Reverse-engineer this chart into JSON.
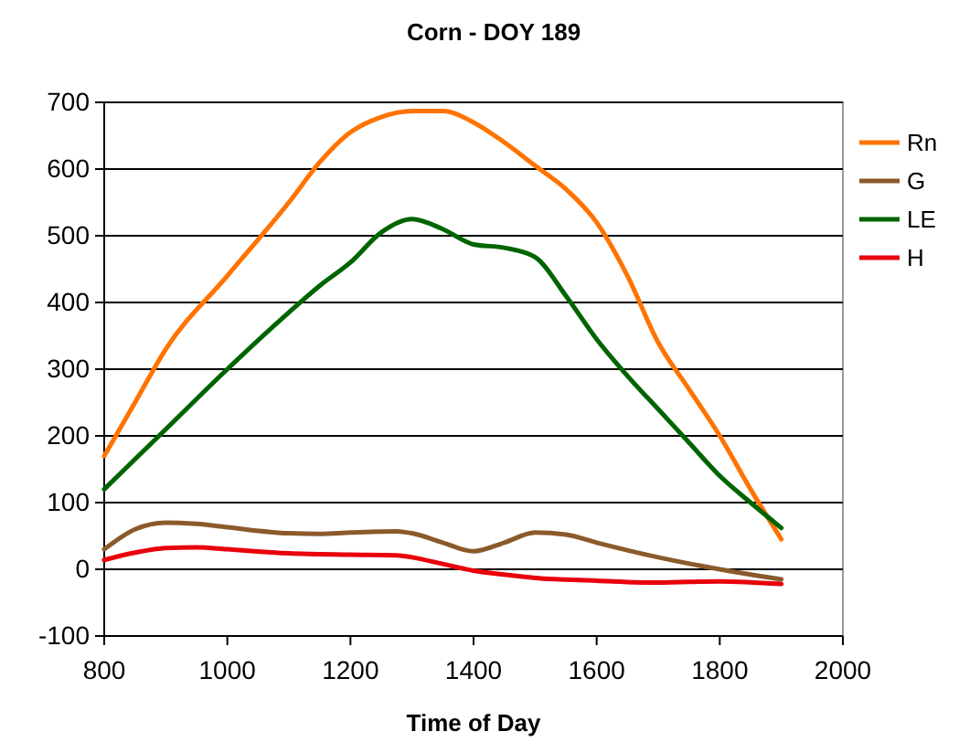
{
  "chart_data": {
    "type": "line",
    "title": "Corn - DOY 189",
    "xlabel": "Time of Day",
    "xlim": [
      800,
      2000
    ],
    "xticks": [
      800,
      1000,
      1200,
      1400,
      1600,
      1800,
      2000
    ],
    "ylim": [
      -100,
      700
    ],
    "yticks": [
      -100,
      0,
      100,
      200,
      300,
      400,
      500,
      600,
      700
    ],
    "grid": "y",
    "legend": "right",
    "marker": "none",
    "line_style": "solid",
    "series": [
      {
        "name": "Rn",
        "color": "#ff7300",
        "x": [
          800,
          850,
          900,
          1000,
          1100,
          1150,
          1200,
          1250,
          1300,
          1350,
          1400,
          1450,
          1500,
          1550,
          1600,
          1650,
          1700,
          1750,
          1800,
          1850,
          1900
        ],
        "values": [
          170,
          250,
          330,
          440,
          550,
          610,
          655,
          678,
          687,
          687,
          670,
          640,
          605,
          570,
          520,
          440,
          340,
          270,
          200,
          120,
          45
        ]
      },
      {
        "name": "G",
        "color": "#8b5a2b",
        "x": [
          800,
          850,
          900,
          950,
          1000,
          1100,
          1150,
          1200,
          1275,
          1300,
          1350,
          1400,
          1450,
          1500,
          1550,
          1600,
          1700,
          1800,
          1900
        ],
        "values": [
          30,
          60,
          70,
          68,
          63,
          54,
          53,
          55,
          57,
          54,
          40,
          27,
          40,
          55,
          52,
          40,
          18,
          0,
          -15
        ]
      },
      {
        "name": "LE",
        "color": "#006400",
        "x": [
          800,
          900,
          1000,
          1100,
          1150,
          1200,
          1250,
          1300,
          1350,
          1400,
          1450,
          1500,
          1550,
          1600,
          1650,
          1700,
          1750,
          1800,
          1850,
          1900
        ],
        "values": [
          120,
          210,
          300,
          385,
          425,
          460,
          505,
          525,
          510,
          487,
          482,
          468,
          410,
          345,
          290,
          240,
          190,
          140,
          100,
          62
        ]
      },
      {
        "name": "H",
        "color": "#e8000b",
        "x": [
          800,
          850,
          900,
          950,
          1000,
          1100,
          1200,
          1275,
          1300,
          1350,
          1400,
          1450,
          1500,
          1600,
          1700,
          1800,
          1900
        ],
        "values": [
          14,
          25,
          32,
          33,
          30,
          24,
          22,
          21,
          18,
          8,
          -2,
          -8,
          -13,
          -17,
          -20,
          -18,
          -22
        ]
      }
    ]
  }
}
